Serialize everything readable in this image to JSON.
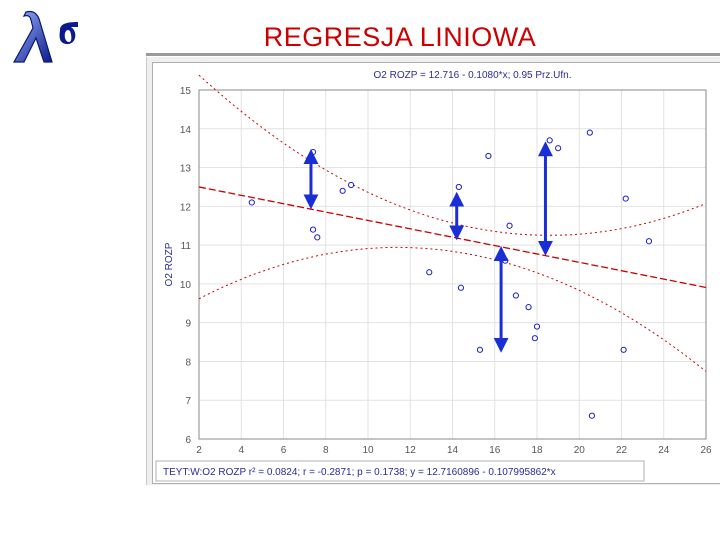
{
  "slide": {
    "title": "REGRESJA LINIOWA"
  },
  "colors": {
    "title": "#cc0000",
    "fit_line": "#cc0000",
    "points": "#1e1ecc",
    "arrows": "#1a2ed6",
    "text": "#2a2a9a"
  },
  "icons": {
    "logo": "lambda-sigma-logo-icon"
  },
  "chart_data": {
    "type": "scatter",
    "title": "O2 ROZP = 12.716 - 0.1080*x; 0.95 Prz.Ufn.",
    "xlabel": "",
    "ylabel": "O2 ROZP",
    "xlim": [
      2,
      26
    ],
    "ylim": [
      6,
      15
    ],
    "xticks": [
      2,
      4,
      6,
      8,
      10,
      12,
      14,
      16,
      18,
      20,
      22,
      24,
      26
    ],
    "yticks": [
      6,
      7,
      8,
      9,
      10,
      11,
      12,
      13,
      14,
      15
    ],
    "grid": true,
    "points": [
      {
        "x": 4.5,
        "y": 12.1
      },
      {
        "x": 7.4,
        "y": 13.4
      },
      {
        "x": 7.4,
        "y": 11.4
      },
      {
        "x": 7.6,
        "y": 11.2
      },
      {
        "x": 8.8,
        "y": 12.4
      },
      {
        "x": 9.2,
        "y": 12.55
      },
      {
        "x": 12.9,
        "y": 10.3
      },
      {
        "x": 14.3,
        "y": 12.5
      },
      {
        "x": 14.4,
        "y": 9.9
      },
      {
        "x": 15.3,
        "y": 8.3
      },
      {
        "x": 15.7,
        "y": 13.3
      },
      {
        "x": 16.5,
        "y": 10.6
      },
      {
        "x": 16.7,
        "y": 11.5
      },
      {
        "x": 17.0,
        "y": 9.7
      },
      {
        "x": 17.6,
        "y": 9.4
      },
      {
        "x": 18.0,
        "y": 8.9
      },
      {
        "x": 17.9,
        "y": 8.6
      },
      {
        "x": 18.6,
        "y": 13.7
      },
      {
        "x": 19.0,
        "y": 13.5
      },
      {
        "x": 20.5,
        "y": 13.9
      },
      {
        "x": 20.6,
        "y": 6.6
      },
      {
        "x": 22.2,
        "y": 12.2
      },
      {
        "x": 22.1,
        "y": 8.3
      },
      {
        "x": 23.3,
        "y": 11.1
      }
    ],
    "fit": {
      "intercept": 12.716,
      "slope": -0.108
    },
    "residual_arrows": [
      {
        "x": 7.3,
        "y_from": 12.0,
        "y_to": 13.4
      },
      {
        "x": 14.2,
        "y_from": 11.2,
        "y_to": 12.3
      },
      {
        "x": 16.3,
        "y_from": 10.9,
        "y_to": 8.3
      },
      {
        "x": 18.4,
        "y_from": 10.8,
        "y_to": 13.6
      }
    ],
    "stats_text": "TEYT:W:O2 ROZP  r² = 0.0824;  r = -0.2871; p = 0.1738;  y = 12.7160896 - 0.107995862*x"
  }
}
